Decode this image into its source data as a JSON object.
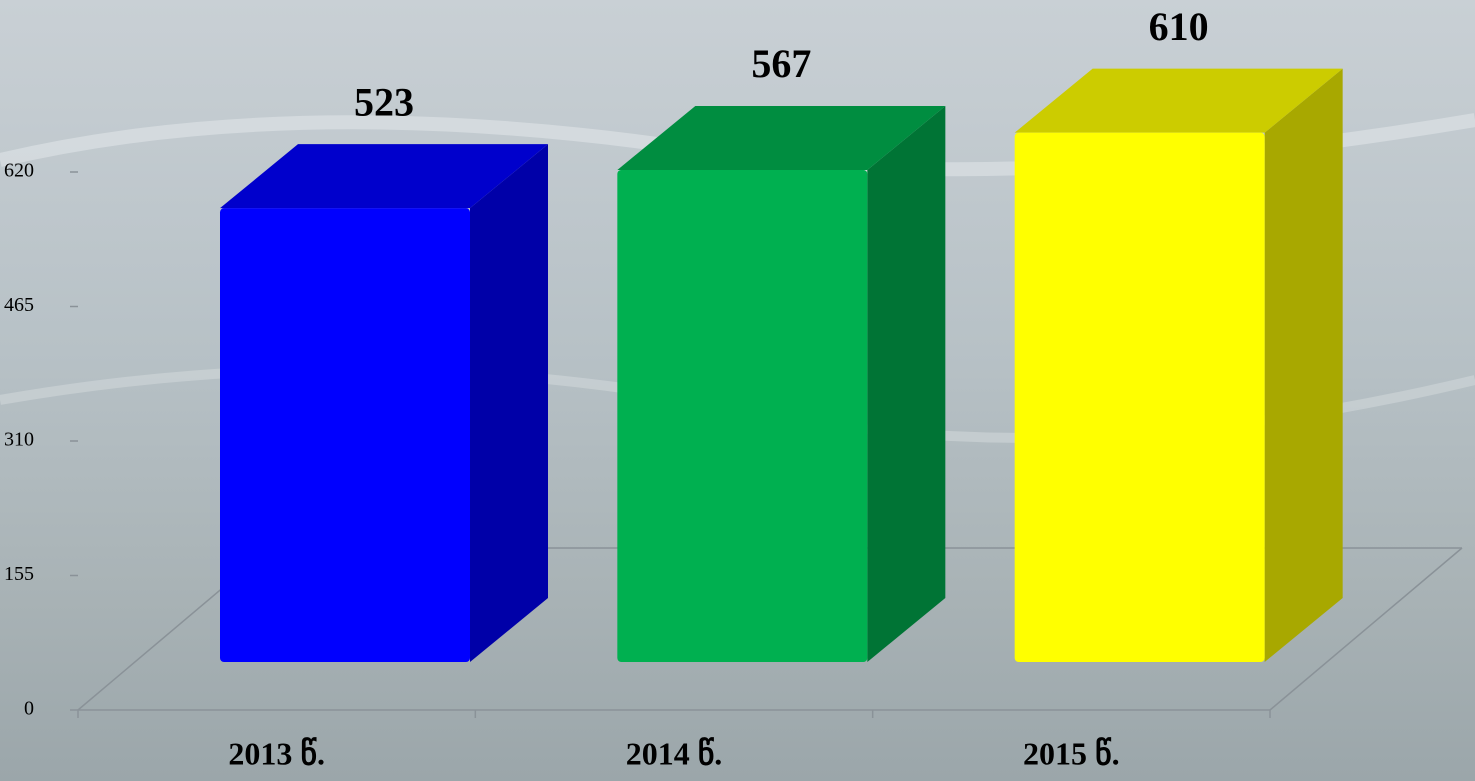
{
  "chart_data": {
    "type": "bar3d",
    "categories": [
      "2013 წ.",
      "2014 წ.",
      "2015 წ."
    ],
    "values": [
      523,
      567,
      610
    ],
    "colors": [
      "#0000ff",
      "#00b050",
      "#ffff00"
    ],
    "ylim": [
      0,
      620
    ],
    "yticks": [
      0,
      155,
      310,
      465,
      620
    ]
  }
}
